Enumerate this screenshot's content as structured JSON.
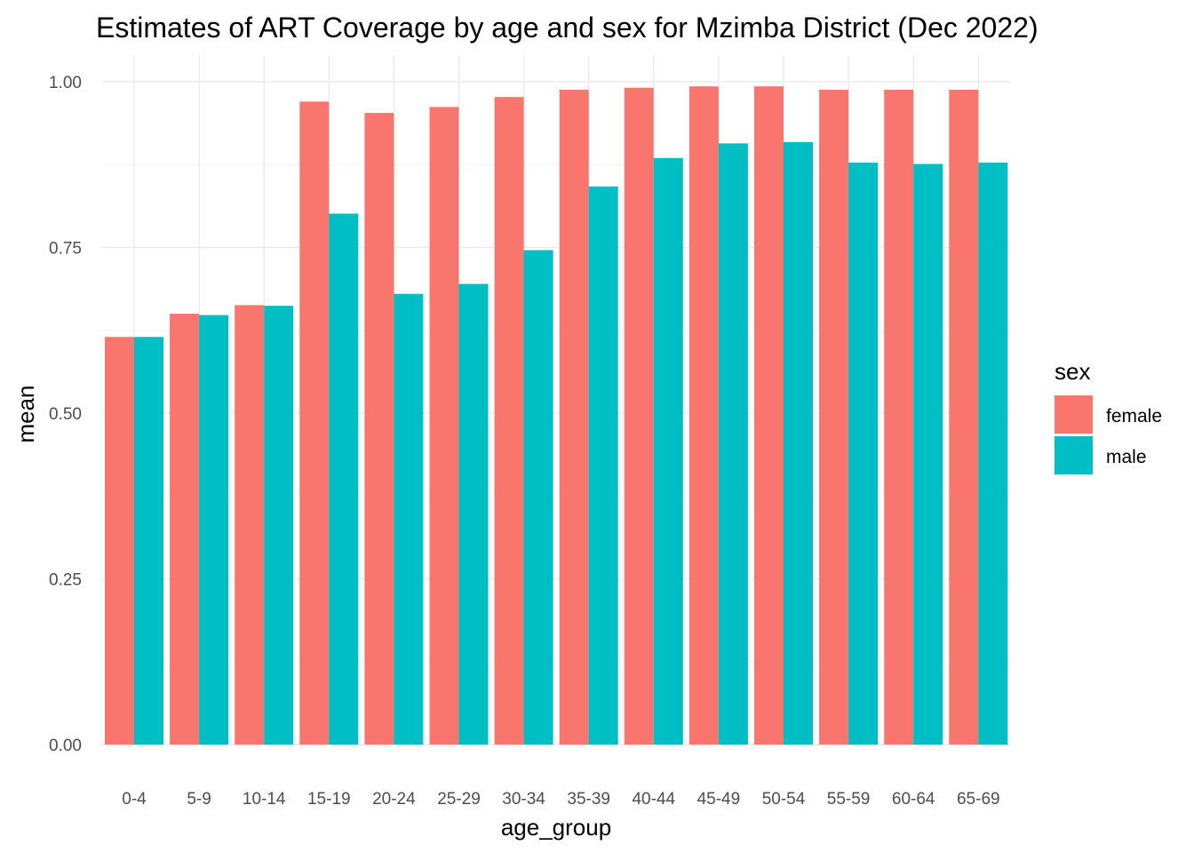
{
  "chart_data": {
    "type": "bar",
    "title": "Estimates of ART Coverage by age and sex for Mzimba District (Dec 2022)",
    "xlabel": "age_group",
    "ylabel": "mean",
    "ylim": [
      0,
      1.0
    ],
    "yticks": [
      0.0,
      0.25,
      0.5,
      0.75,
      1.0
    ],
    "ytick_labels": [
      "0.00",
      "0.25",
      "0.50",
      "0.75",
      "1.00"
    ],
    "grid": true,
    "categories": [
      "0-4",
      "5-9",
      "10-14",
      "15-19",
      "20-24",
      "25-29",
      "30-34",
      "35-39",
      "40-44",
      "45-49",
      "50-54",
      "55-59",
      "60-64",
      "65-69"
    ],
    "legend": {
      "title": "sex",
      "placement": "right"
    },
    "series": [
      {
        "name": "female",
        "color": "#F8766D",
        "values": [
          0.615,
          0.65,
          0.663,
          0.97,
          0.953,
          0.962,
          0.977,
          0.988,
          0.991,
          0.993,
          0.993,
          0.988,
          0.988,
          0.988
        ]
      },
      {
        "name": "male",
        "color": "#00BFC4",
        "values": [
          0.615,
          0.648,
          0.662,
          0.801,
          0.68,
          0.695,
          0.746,
          0.842,
          0.885,
          0.907,
          0.909,
          0.878,
          0.876,
          0.878
        ]
      }
    ]
  }
}
